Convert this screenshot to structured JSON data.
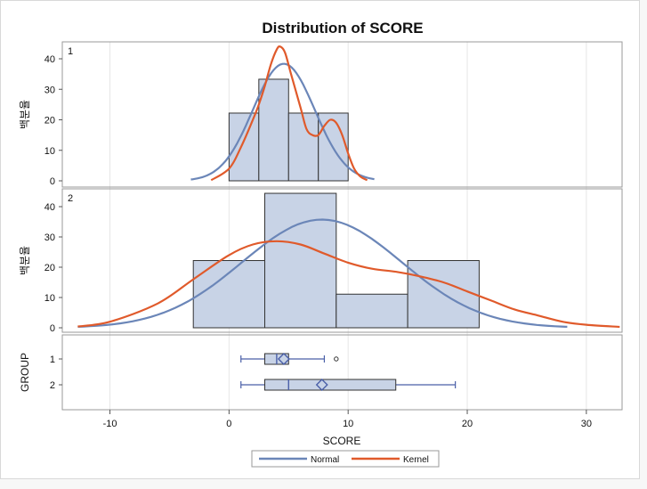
{
  "chart_data": {
    "type": "histogram-panel",
    "title": "Distribution of SCORE",
    "xlabel": "SCORE",
    "xlim": [
      -14,
      33
    ],
    "xticks": [
      -10,
      0,
      10,
      20,
      30
    ],
    "hist_ylabel": "백분율",
    "box_ylabel": "GROUP",
    "ylim": [
      0,
      45
    ],
    "yticks": [
      0,
      10,
      20,
      30,
      40
    ],
    "panels": [
      {
        "label": "1",
        "bins": [
          {
            "start": 0,
            "end": 2.5,
            "value": 22.2
          },
          {
            "start": 2.5,
            "end": 5,
            "value": 33.3
          },
          {
            "start": 5,
            "end": 7.5,
            "value": 22.2
          },
          {
            "start": 7.5,
            "end": 10,
            "value": 22.2
          }
        ],
        "normal": {
          "mean": 4.6,
          "sd": 2.6,
          "x_range": [
            -3.2,
            12.2
          ]
        },
        "kernel_points": [
          [
            -1.5,
            0.2
          ],
          [
            0,
            4
          ],
          [
            1,
            11
          ],
          [
            2,
            20
          ],
          [
            2.5,
            25
          ],
          [
            3,
            31
          ],
          [
            3.5,
            38
          ],
          [
            4,
            43
          ],
          [
            4.3,
            44
          ],
          [
            4.7,
            42
          ],
          [
            5.2,
            35
          ],
          [
            6,
            24
          ],
          [
            6.5,
            17
          ],
          [
            7,
            15
          ],
          [
            7.5,
            15
          ],
          [
            8,
            18
          ],
          [
            8.5,
            20
          ],
          [
            9,
            19
          ],
          [
            9.5,
            15
          ],
          [
            10,
            9
          ],
          [
            10.5,
            4
          ],
          [
            11,
            1.5
          ],
          [
            11.6,
            0.2
          ]
        ]
      },
      {
        "label": "2",
        "bins": [
          {
            "start": -3,
            "end": 3,
            "value": 22.2
          },
          {
            "start": 3,
            "end": 9,
            "value": 44.4
          },
          {
            "start": 9,
            "end": 15,
            "value": 11.1
          },
          {
            "start": 15,
            "end": 21,
            "value": 22.2
          }
        ],
        "normal": {
          "mean": 7.8,
          "sd": 6.7,
          "x_range": [
            -12.7,
            28.4
          ]
        },
        "kernel_points": [
          [
            -12.7,
            0.4
          ],
          [
            -10,
            2
          ],
          [
            -6,
            8
          ],
          [
            -3,
            16
          ],
          [
            0,
            24
          ],
          [
            2,
            27.5
          ],
          [
            4,
            28.6
          ],
          [
            6,
            27.5
          ],
          [
            8,
            24.5
          ],
          [
            10,
            21.5
          ],
          [
            12,
            19.5
          ],
          [
            14,
            18.5
          ],
          [
            16,
            17
          ],
          [
            18,
            15
          ],
          [
            20,
            12
          ],
          [
            22,
            9
          ],
          [
            24,
            6
          ],
          [
            26,
            4
          ],
          [
            28,
            2
          ],
          [
            30,
            1
          ],
          [
            32.8,
            0.3
          ]
        ]
      }
    ],
    "boxes": [
      {
        "group": "1",
        "min": 1,
        "q1": 3,
        "median": 4,
        "mean": 4.6,
        "q3": 5,
        "max": 8,
        "outliers": [
          9
        ]
      },
      {
        "group": "2",
        "min": 1,
        "q1": 3,
        "median": 5,
        "mean": 7.8,
        "q3": 14,
        "max": 19,
        "outliers": []
      }
    ],
    "legend": [
      {
        "name": "Normal",
        "color": "#6b86b8"
      },
      {
        "name": "Kernel",
        "color": "#e05a2b"
      }
    ],
    "colors": {
      "bar_fill": "#c8d3e6",
      "bar_stroke": "#333333",
      "box_stroke": "#4a5fa8",
      "grid": "#e6e6e6"
    }
  }
}
